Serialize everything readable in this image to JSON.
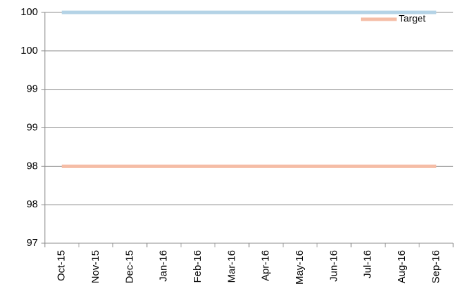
{
  "chart_data": {
    "type": "line",
    "categories": [
      "Oct-15",
      "Nov-15",
      "Dec-15",
      "Jan-16",
      "Feb-16",
      "Mar-16",
      "Apr-16",
      "May-16",
      "Jun-16",
      "Jul-16",
      "Aug-16",
      "Sep-16"
    ],
    "series": [
      {
        "color": "#b4d3e6",
        "values": [
          100,
          100,
          100,
          100,
          100,
          100,
          100,
          100,
          100,
          100,
          100,
          100
        ]
      },
      {
        "name": "Target",
        "color": "#f5bda6",
        "values": [
          98,
          98,
          98,
          98,
          98,
          98,
          98,
          98,
          98,
          98,
          98,
          98
        ]
      }
    ],
    "ylim": [
      97,
      100
    ],
    "yticks": [
      97,
      {
        "value": 97.5,
        "label": "98"
      },
      98,
      {
        "value": 98.5,
        "label": "99"
      },
      99,
      {
        "value": 99.5,
        "label": "100"
      },
      100
    ],
    "grid": true,
    "legend": "top-right"
  }
}
